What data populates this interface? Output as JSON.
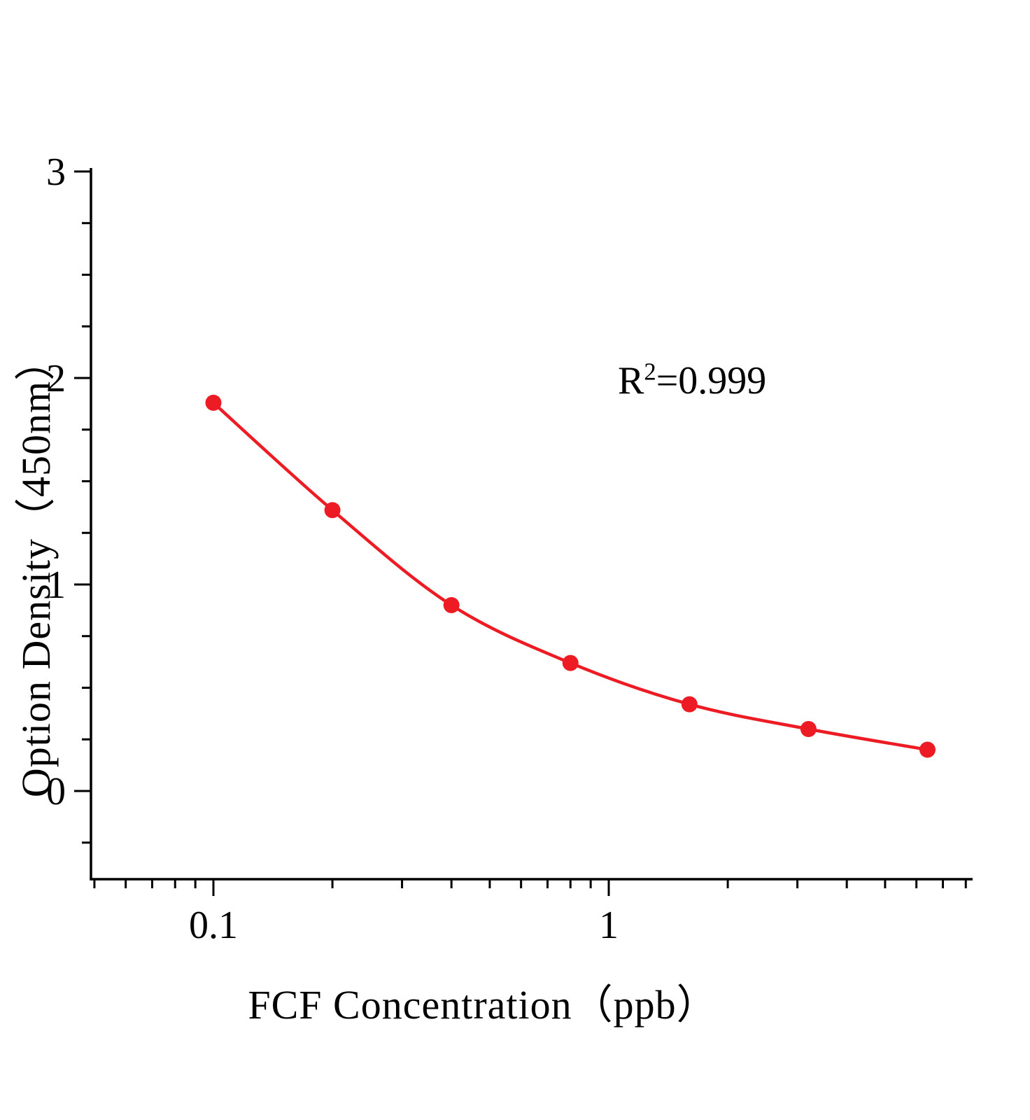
{
  "figure": {
    "xlabel": "FCF Concentration（ppb）",
    "ylabel": "Option Density（450nm）",
    "annotation": {
      "base": "R",
      "sup": "2",
      "rest": "=0.999"
    }
  },
  "chart_data": {
    "type": "scatter",
    "title": "",
    "xlabel": "FCF Concentration（ppb）",
    "ylabel": "Option Density（450nm）",
    "x_scale": "log",
    "x": [
      0.1,
      0.2,
      0.4,
      0.8,
      1.6,
      3.2,
      6.4
    ],
    "y": [
      1.88,
      1.36,
      0.9,
      0.62,
      0.42,
      0.3,
      0.2
    ],
    "fit_line": "smooth 4PL-style curve through all points",
    "annotation_text": "R2=0.999",
    "r_squared": 0.999,
    "xlim": [
      0.05,
      8.3
    ],
    "ylim": [
      -0.43,
      3.02
    ],
    "x_ticks": [
      0.1,
      1
    ],
    "x_tick_labels": [
      "0.1",
      "1"
    ],
    "y_ticks": [
      0,
      1,
      2,
      3
    ],
    "y_tick_labels": [
      "0",
      "1",
      "2",
      "3"
    ],
    "grid": false,
    "legend": false,
    "line_color": "#ed1c24",
    "marker_color": "#ed1c24",
    "axis_color": "#000000"
  }
}
